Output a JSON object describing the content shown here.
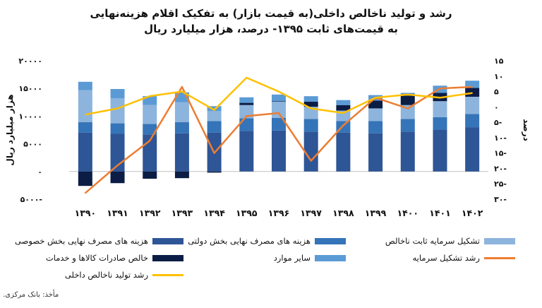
{
  "title_line1": "رشد و تولید ناخالص داخلی(به قیمت بازار) به تفکیک اقلام هزینه‌نهایی",
  "title_line2": "به قیمت‌های ثابت ۱۳۹۵- درصد، هزار میلیارد ریال",
  "source": "مأخذ: بانک مرکزی.",
  "colors": {
    "private": "#2e5596",
    "gov": "#3574b8",
    "invest": "#8db4dd",
    "netexp": "#0b1d45",
    "other": "#5b9bd5",
    "capgrowth": "#ed7d31",
    "gdpgrowth": "#ffc000",
    "axis": "#bfbfbf"
  },
  "chart_data": {
    "type": "bar",
    "stacked": true,
    "categories": [
      "۱۳۹۰",
      "۱۳۹۱",
      "۱۳۹۲",
      "۱۳۹۳",
      "۱۳۹۴",
      "۱۳۹۵",
      "۱۳۹۶",
      "۱۳۹۷",
      "۱۳۹۸",
      "۱۳۹۹",
      "۱۴۰۰",
      "۱۴۰۱",
      "۱۴۰۲"
    ],
    "left_axis": {
      "label": "هزار میلیارد ریال",
      "range": [
        -5000,
        20000
      ],
      "ticks": [
        -5000,
        0,
        5000,
        10000,
        15000,
        20000
      ],
      "tick_labels": [
        "۵۰۰۰-",
        "۰",
        "۵۰۰۰",
        "۱۰۰۰۰",
        "۱۵۰۰۰",
        "۲۰۰۰۰"
      ]
    },
    "right_axis": {
      "label": "درصد",
      "range": [
        -30,
        15
      ],
      "ticks": [
        -30,
        -25,
        -20,
        -15,
        -10,
        -5,
        0,
        5,
        10,
        15
      ],
      "tick_labels": [
        "۳۰-",
        "۲۵-",
        "۲۰-",
        "۱۵-",
        "۱۰-",
        "۵-",
        "۰",
        "۵",
        "۱۰",
        "۱۵"
      ]
    },
    "series": [
      {
        "name": "هزینه های مصرف نهایی بخش خصوصی",
        "key": "private",
        "axis": "left",
        "values": [
          7000,
          6800,
          6700,
          6900,
          7000,
          7300,
          7400,
          7200,
          7000,
          6900,
          7200,
          7500,
          8000
        ]
      },
      {
        "name": "هزینه های مصرف نهایی بخش دولتی",
        "key": "gov",
        "axis": "left",
        "values": [
          1900,
          1900,
          1900,
          2000,
          2100,
          2300,
          2300,
          2300,
          2100,
          2200,
          2300,
          2300,
          2400
        ]
      },
      {
        "name": "تشکیل سرمایه ثابت ناخالص",
        "key": "invest",
        "axis": "left",
        "values": [
          5800,
          4500,
          3400,
          3600,
          1800,
          2400,
          2900,
          2200,
          1900,
          2300,
          2500,
          2900,
          3100
        ]
      },
      {
        "name": "خالص صادرات کالاها و خدمات",
        "key": "netexp",
        "axis": "left",
        "values": [
          -2600,
          -2100,
          -1300,
          -1200,
          -200,
          400,
          100,
          900,
          1000,
          1400,
          1700,
          1500,
          1600
        ]
      },
      {
        "name": "سایر موارد",
        "key": "other",
        "axis": "left",
        "values": [
          1500,
          1700,
          1600,
          1800,
          900,
          1000,
          1200,
          1000,
          900,
          1000,
          500,
          1300,
          1300
        ]
      },
      {
        "name": "رشد تشکیل سرمایه",
        "key": "capgrowth",
        "axis": "right",
        "type": "line",
        "values": [
          -28,
          -19,
          -11,
          6.5,
          -15,
          -3,
          -2,
          -17.5,
          -6,
          3,
          -0.5,
          6,
          6.5
        ]
      },
      {
        "name": "رشد تولید ناخالص داخلی",
        "key": "gdpgrowth",
        "axis": "right",
        "type": "line",
        "values": [
          -2.5,
          -0.5,
          3.5,
          5,
          -1,
          9.5,
          5,
          -0.5,
          -2,
          3,
          4,
          3,
          4.5
        ]
      }
    ],
    "legend_position": "bottom"
  }
}
